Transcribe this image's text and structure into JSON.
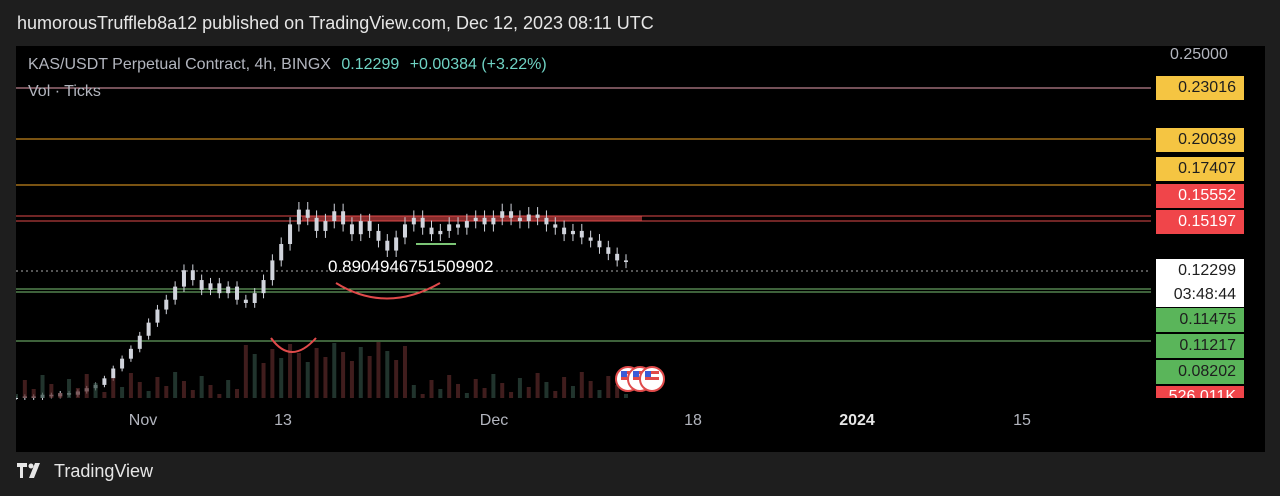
{
  "header": {
    "text": "humorousTruffleb8a12 published on TradingView.com, Dec 12, 2023 08:11 UTC"
  },
  "legend": {
    "symbol": "KAS/USDT Perpetual Contract, 4h, BINGX",
    "price": "0.12299",
    "change": "+0.00384 (+3.22%)",
    "volume": "Vol · Ticks"
  },
  "annotation_text": "0.890494675150990​2",
  "footer": {
    "brand": "TradingView"
  },
  "colors": {
    "background": "#000000",
    "candle": "#d1d4dc",
    "pink_line": "#e8a0b0",
    "orange_line": "#f5a623",
    "red_zone": "#e04a4a",
    "green_line": "#7cc576",
    "label_yellow": "#f5c542",
    "label_red": "#f0454a",
    "label_green": "#5ab55a"
  },
  "chart_data": {
    "type": "candlestick",
    "title": "KAS/USDT Perpetual Contract, 4h, BINGX",
    "price_axis_ticks": [
      "0.25000"
    ],
    "x_ticks": [
      "Nov",
      "13",
      "Dec",
      "18",
      "2024",
      "15"
    ],
    "horizontal_levels": [
      {
        "price": 0.23016,
        "label": "0.23016",
        "style": "pink"
      },
      {
        "price": 0.20039,
        "label": "0.20039",
        "style": "yellow"
      },
      {
        "price": 0.17407,
        "label": "0.17407",
        "style": "yellow"
      },
      {
        "price": 0.15552,
        "label": "0.15552",
        "style": "red"
      },
      {
        "price": 0.15197,
        "label": "0.15197",
        "style": "red"
      },
      {
        "price": 0.11475,
        "label": "0.11475",
        "style": "green"
      },
      {
        "price": 0.11217,
        "label": "0.11217",
        "style": "green"
      },
      {
        "price": 0.08202,
        "label": "0.08202",
        "style": "green"
      }
    ],
    "current_price": {
      "label": "0.12299",
      "countdown": "03:48:44"
    },
    "volume_label": "526.011K",
    "close_series": [
      0.04,
      0.041,
      0.04,
      0.042,
      0.041,
      0.043,
      0.042,
      0.044,
      0.046,
      0.048,
      0.052,
      0.058,
      0.064,
      0.07,
      0.078,
      0.086,
      0.094,
      0.1,
      0.108,
      0.118,
      0.112,
      0.106,
      0.11,
      0.104,
      0.108,
      0.1,
      0.098,
      0.104,
      0.112,
      0.124,
      0.134,
      0.146,
      0.155,
      0.15,
      0.142,
      0.148,
      0.154,
      0.146,
      0.14,
      0.148,
      0.142,
      0.136,
      0.13,
      0.138,
      0.146,
      0.15,
      0.144,
      0.14,
      0.142,
      0.146,
      0.144,
      0.148,
      0.15,
      0.146,
      0.15,
      0.154,
      0.15,
      0.148,
      0.152,
      0.15,
      0.146,
      0.144,
      0.14,
      0.142,
      0.138,
      0.136,
      0.132,
      0.128,
      0.124,
      0.123
    ]
  }
}
